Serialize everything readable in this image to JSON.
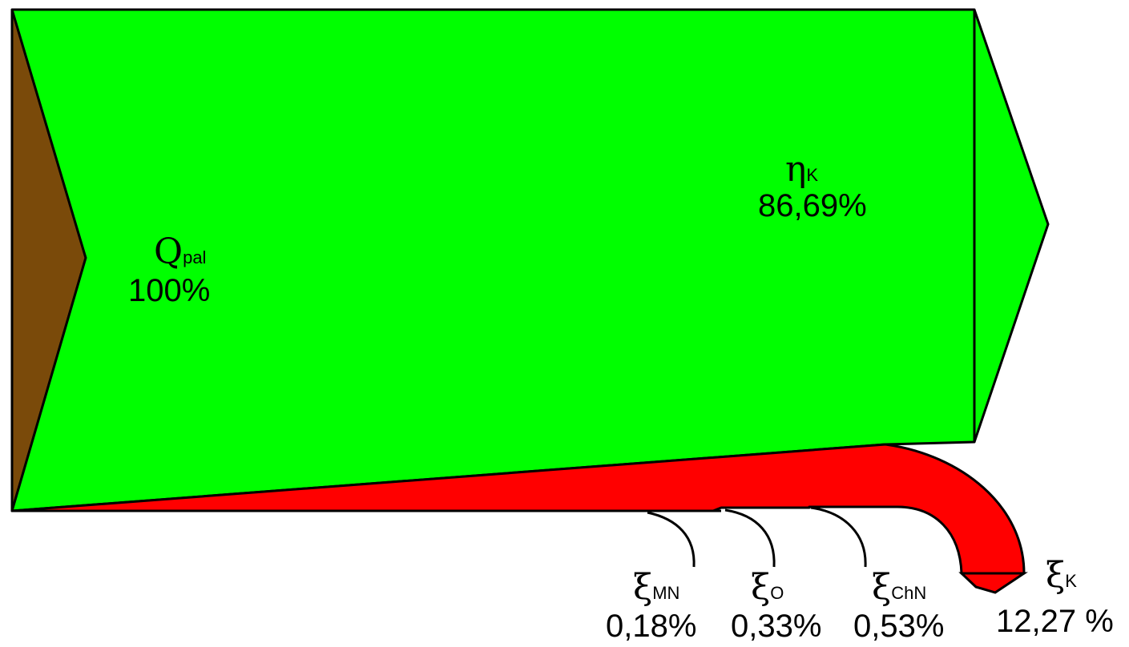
{
  "colors": {
    "input": "#7a4a0a",
    "useful": "#00ff00",
    "loss": "#ff0000",
    "outline": "#000000"
  },
  "input": {
    "symbol": "Q",
    "subscript": "pal",
    "value": "100%"
  },
  "output": {
    "symbol": "η",
    "subscript": "K",
    "value": "86,69%"
  },
  "losses": [
    {
      "symbol": "ξ",
      "subscript": "MN",
      "value": "0,18%"
    },
    {
      "symbol": "ξ",
      "subscript": "O",
      "value": "0,33%"
    },
    {
      "symbol": "ξ",
      "subscript": "ChN",
      "value": "0,53%"
    },
    {
      "symbol": "ξ",
      "subscript": "K",
      "value": "12,27 %"
    }
  ]
}
